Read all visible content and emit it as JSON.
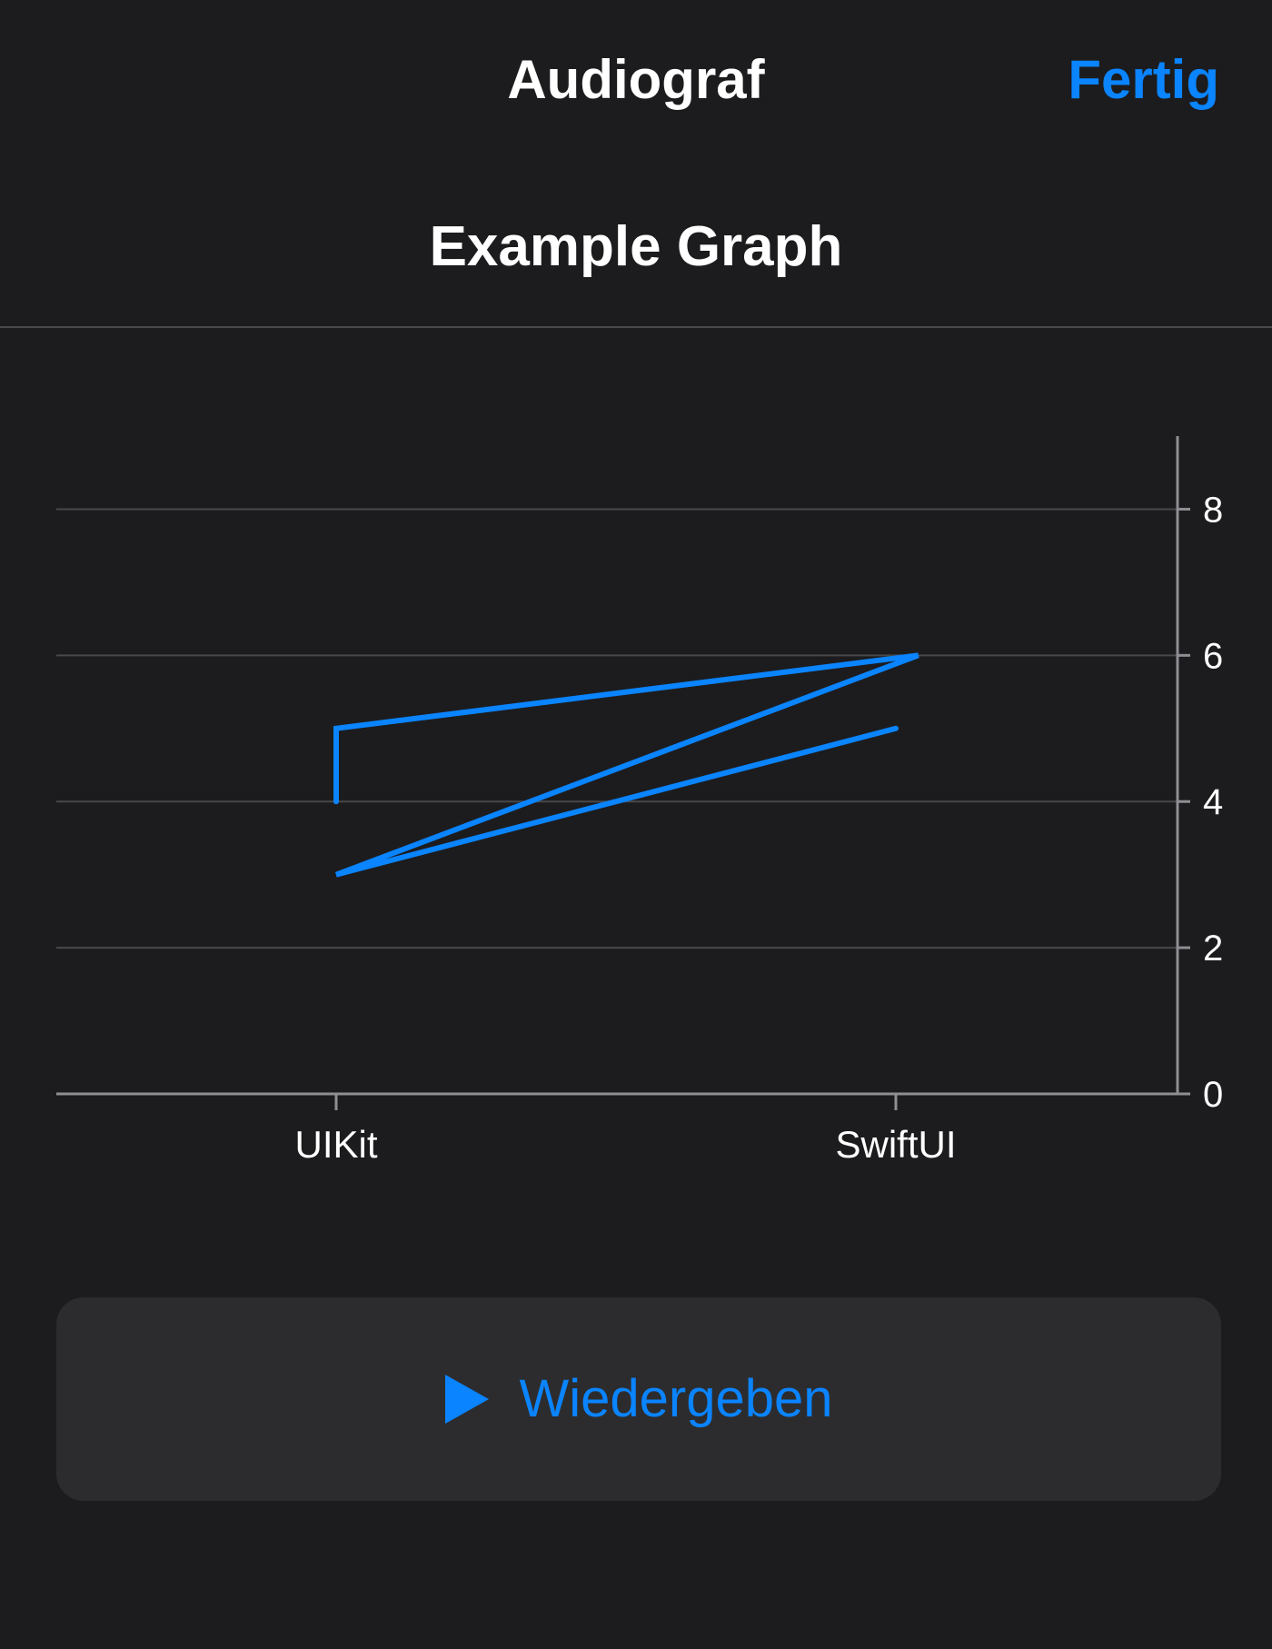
{
  "nav": {
    "title": "Audiograf",
    "done_label": "Fertig"
  },
  "graph": {
    "title": "Example Graph"
  },
  "play_button": {
    "icon": "play-icon",
    "label": "Wiedergeben"
  },
  "colors": {
    "background": "#1c1c1e",
    "accent": "#0a84ff",
    "button_background": "#2c2c2e"
  },
  "chart_data": {
    "type": "line",
    "title": "Example Graph",
    "categories": [
      "UIKit",
      "SwiftUI"
    ],
    "points": [
      {
        "x": 0,
        "y": 4
      },
      {
        "x": 0,
        "y": 5
      },
      {
        "x": 1.04,
        "y": 6
      },
      {
        "x": 0,
        "y": 3
      },
      {
        "x": 1,
        "y": 5
      }
    ],
    "y_axis": {
      "position": "right",
      "ticks": [
        0,
        2,
        4,
        6,
        8
      ],
      "range": [
        0,
        9
      ]
    },
    "x_axis_ticks": [
      "UIKit",
      "SwiftUI"
    ],
    "grid": true,
    "line_color": "#0a84ff"
  }
}
